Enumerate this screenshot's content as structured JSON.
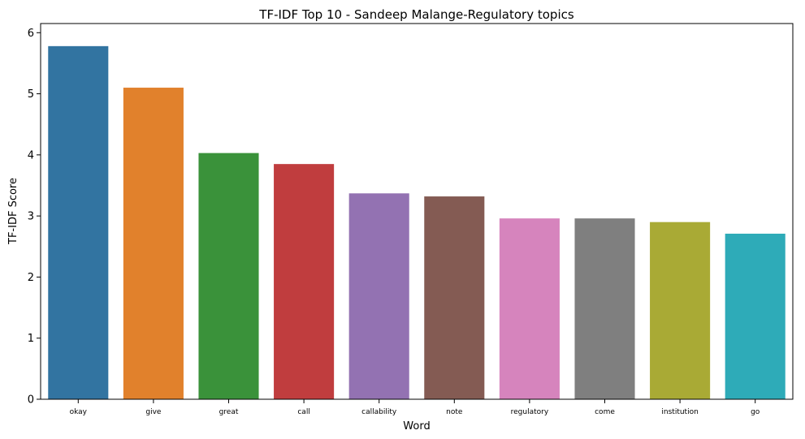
{
  "chart_data": {
    "type": "bar",
    "title": "TF-IDF Top 10 - Sandeep Malange-Regulatory topics",
    "xlabel": "Word",
    "ylabel": "TF-IDF Score",
    "ylim": [
      0,
      6.15
    ],
    "yticks": [
      0,
      1,
      2,
      3,
      4,
      5,
      6
    ],
    "grid": false,
    "categories": [
      "okay",
      "give",
      "great",
      "call",
      "callability",
      "note",
      "regulatory",
      "come",
      "institution",
      "go"
    ],
    "values": [
      5.78,
      5.1,
      4.03,
      3.85,
      3.37,
      3.32,
      2.96,
      2.96,
      2.9,
      2.71
    ],
    "colors": [
      "#3274a1",
      "#e1812c",
      "#3a923a",
      "#c03d3e",
      "#9372b2",
      "#845b53",
      "#d684bd",
      "#7f7f7f",
      "#a9aa35",
      "#2eabb8"
    ]
  }
}
